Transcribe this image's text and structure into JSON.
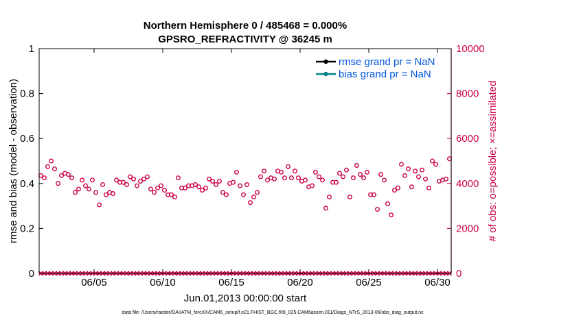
{
  "colors": {
    "possible": "#cc0044",
    "assimilated": "#cc0044",
    "rmse": "#000000",
    "bias": "#008080",
    "legend_text": "#0055dd",
    "right_axis": "#cc0044"
  },
  "chart_data": {
    "type": "scatter",
    "title": "Northern Hemisphere 0 / 485468 = 0.000%",
    "subtitle": "GPSRO_REFRACTIVITY @ 36245 m",
    "ylabel": "rmse and bias (model - observation)",
    "y2label": "# of obs: o=possible; ×=assimilated",
    "xlabel": "Jun.01,2013 00:00:00 start",
    "footer": "data file: /Users/raeder/DAI/ATM_forcXX/CAM6_setup/f.e21.FHIST_BGC.f09_025.CAM6assim.011/Diags_NTrS_2013-06/obs_diag_output.nc",
    "ylim": [
      0,
      1
    ],
    "y2lim": [
      0,
      10000
    ],
    "xlim": [
      1.0,
      31.0
    ],
    "yticks": [
      "0",
      "0.2",
      "0.4",
      "0.6",
      "0.8",
      "1"
    ],
    "y2ticks": [
      "0",
      "2000",
      "4000",
      "6000",
      "8000",
      "10000"
    ],
    "xticks": [
      {
        "day": 5,
        "label": "06/05"
      },
      {
        "day": 10,
        "label": "06/10"
      },
      {
        "day": 15,
        "label": "06/15"
      },
      {
        "day": 20,
        "label": "06/20"
      },
      {
        "day": 25,
        "label": "06/25"
      },
      {
        "day": 30,
        "label": "06/30"
      }
    ],
    "legend": [
      {
        "name": "rmse grand pr = NaN",
        "color": "#000000"
      },
      {
        "name": "bias grand pr = NaN",
        "color": "#008080"
      }
    ],
    "series": [
      {
        "name": "possible",
        "axis": "right",
        "marker": "circle",
        "day_start": 1.125,
        "day_step": 0.25,
        "values": [
          4350,
          4250,
          4750,
          5000,
          4650,
          4000,
          4350,
          4450,
          4400,
          4250,
          3600,
          3750,
          4150,
          3900,
          3750,
          4150,
          3600,
          3050,
          3950,
          3500,
          3600,
          3550,
          4150,
          4050,
          4050,
          3950,
          4300,
          4200,
          3900,
          4100,
          4200,
          4300,
          3750,
          3600,
          3800,
          3900,
          3700,
          3500,
          3500,
          3400,
          4250,
          3800,
          3800,
          3900,
          3900,
          3950,
          3850,
          3700,
          3800,
          4200,
          4100,
          3950,
          4100,
          3600,
          3500,
          4000,
          4050,
          4500,
          3900,
          3500,
          3950,
          3150,
          3400,
          3600,
          4300,
          4550,
          4150,
          4250,
          4200,
          4550,
          4500,
          4250,
          4750,
          4250,
          4550,
          4250,
          4100,
          4150,
          3850,
          3900,
          4500,
          4300,
          4150,
          2900,
          3400,
          4050,
          4050,
          4450,
          4300,
          4600,
          3400,
          4250,
          4800,
          4400,
          4250,
          4500,
          3500,
          3500,
          2850,
          4400,
          4150,
          3100,
          2600,
          3700,
          3800,
          4850,
          4350,
          4650,
          3850,
          4550,
          4300,
          4600,
          4200,
          3800,
          5000,
          4850,
          4100,
          4150,
          4200,
          5100
        ]
      },
      {
        "name": "assimilated",
        "axis": "right",
        "marker": "x",
        "day_start": 1.125,
        "day_step": 0.25,
        "count": 120,
        "value": 0
      },
      {
        "name": "rmse",
        "axis": "left",
        "marker": "dot",
        "values": []
      },
      {
        "name": "bias",
        "axis": "left",
        "marker": "dot",
        "values": []
      }
    ]
  }
}
